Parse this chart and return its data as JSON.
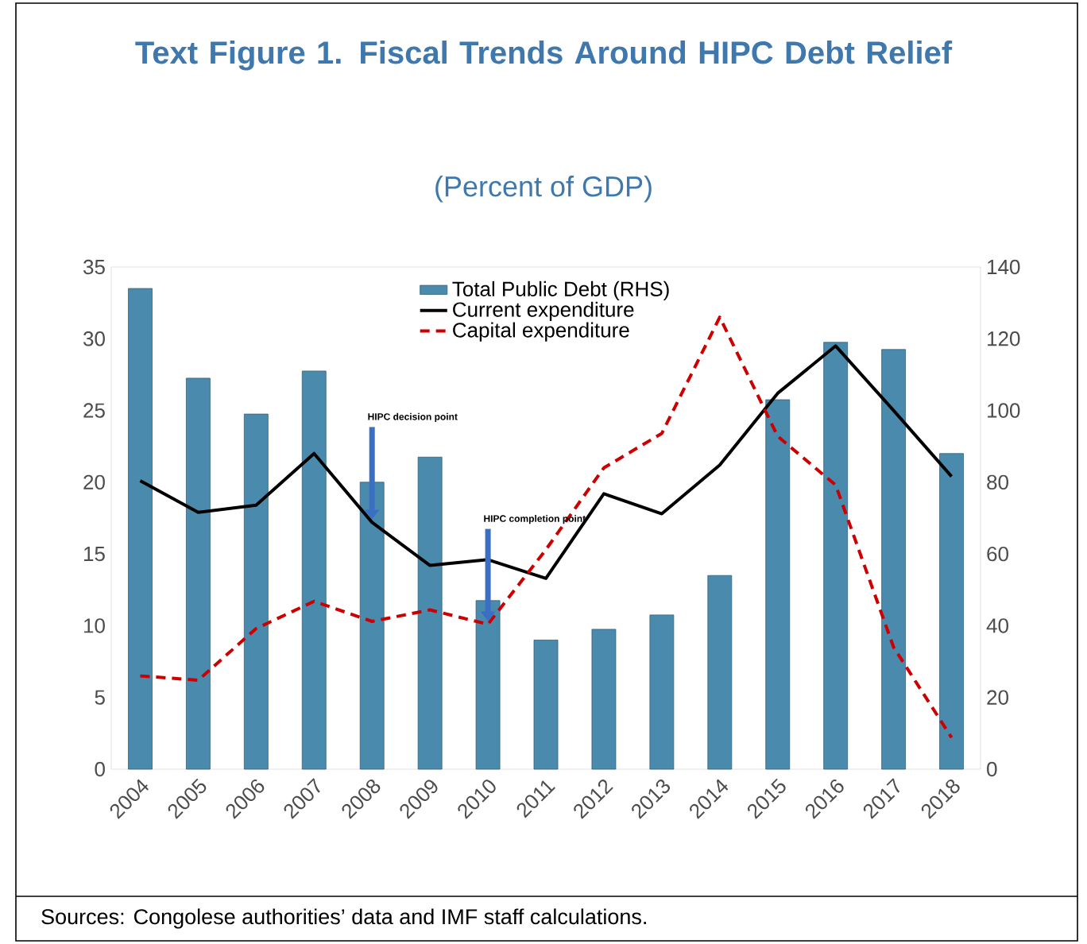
{
  "chart_data": {
    "type": "bar",
    "title": "Text Figure 1. Fiscal Trends Around HIPC Debt Relief",
    "subtitle": "(Percent of GDP)",
    "categories": [
      "2004",
      "2005",
      "2006",
      "2007",
      "2008",
      "2009",
      "2010",
      "2011",
      "2012",
      "2013",
      "2014",
      "2015",
      "2016",
      "2017",
      "2018"
    ],
    "series": [
      {
        "name": "Total Public Debt (RHS)",
        "axis": "y2",
        "color": "#4a8bad",
        "values": [
          134,
          109,
          99,
          111,
          80,
          87,
          47,
          36,
          39,
          43,
          54,
          103,
          119,
          117,
          88
        ]
      },
      {
        "name": "Current expenditure",
        "type": "line",
        "color": "#000000",
        "line_style": "solid",
        "values": [
          20.1,
          17.9,
          18.4,
          22.0,
          17.2,
          14.2,
          14.6,
          13.3,
          19.2,
          17.8,
          21.2,
          26.2,
          29.5,
          25.0,
          20.4
        ]
      },
      {
        "name": "Capital expenditure",
        "type": "line",
        "color": "#cc0000",
        "line_style": "dashed",
        "values": [
          6.5,
          6.2,
          9.8,
          11.7,
          10.3,
          11.1,
          10.1,
          15.3,
          21.0,
          23.4,
          31.5,
          23.2,
          19.8,
          8.5,
          2.2
        ]
      }
    ],
    "ylim": [
      0,
      35
    ],
    "yticks": [
      0,
      5,
      10,
      15,
      20,
      25,
      30,
      35
    ],
    "y2lim": [
      0,
      140
    ],
    "y2ticks": [
      0,
      20,
      40,
      60,
      80,
      100,
      120,
      140
    ],
    "legend": "top",
    "grid": false,
    "marker": "none",
    "annotations": [
      {
        "text": "HIPC decision point",
        "x": "2008",
        "y": 17.2
      },
      {
        "text": "HIPC completion point",
        "x": "2010",
        "y": 10.1
      },
      "Sources: Congolese authorities’ data and IMF staff calculations."
    ]
  }
}
